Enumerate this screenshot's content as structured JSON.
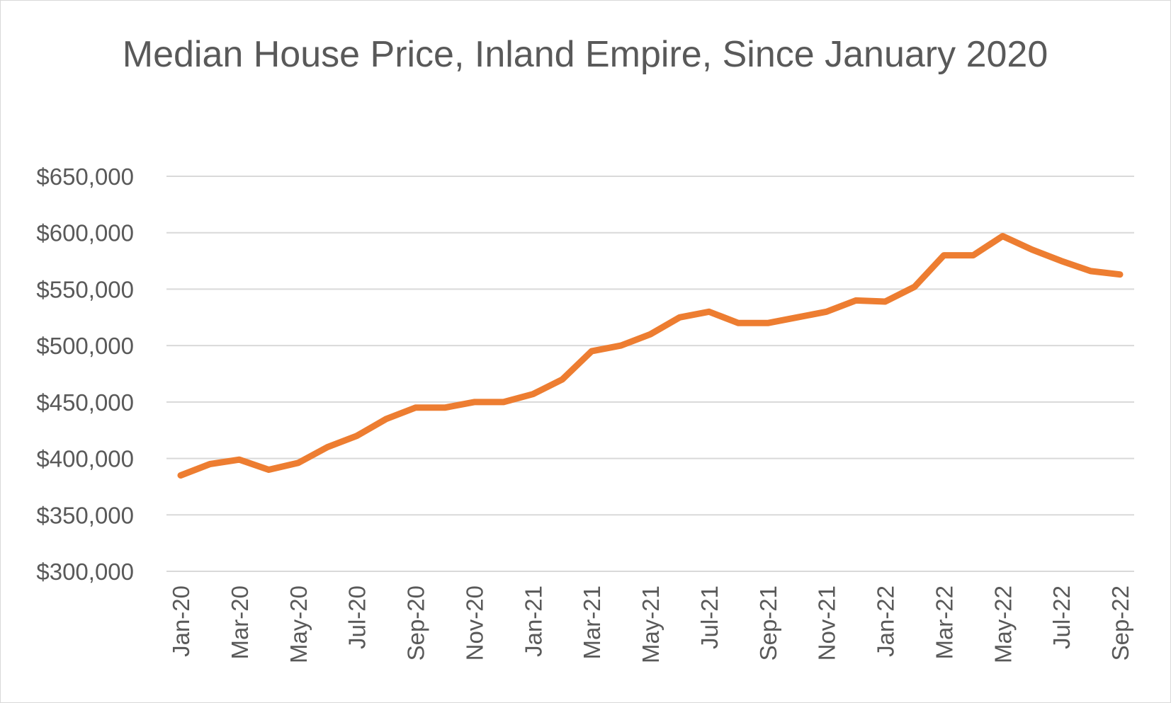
{
  "chart_data": {
    "type": "line",
    "title": "Median House Price, Inland Empire, Since January 2020",
    "xlabel": "",
    "ylabel": "",
    "x": [
      "Jan-20",
      "Feb-20",
      "Mar-20",
      "Apr-20",
      "May-20",
      "Jun-20",
      "Jul-20",
      "Aug-20",
      "Sep-20",
      "Oct-20",
      "Nov-20",
      "Dec-20",
      "Jan-21",
      "Feb-21",
      "Mar-21",
      "Apr-21",
      "May-21",
      "Jun-21",
      "Jul-21",
      "Aug-21",
      "Sep-21",
      "Oct-21",
      "Nov-21",
      "Dec-21",
      "Jan-22",
      "Feb-22",
      "Mar-22",
      "Apr-22",
      "May-22",
      "Jun-22",
      "Jul-22",
      "Aug-22",
      "Sep-22"
    ],
    "x_tick_labels": [
      "Jan-20",
      "Mar-20",
      "May-20",
      "Jul-20",
      "Sep-20",
      "Nov-20",
      "Jan-21",
      "Mar-21",
      "May-21",
      "Jul-21",
      "Sep-21",
      "Nov-21",
      "Jan-22",
      "Mar-22",
      "May-22",
      "Jul-22",
      "Sep-22"
    ],
    "series": [
      {
        "color": "#ED7D31",
        "values": [
          385000,
          395000,
          399000,
          390000,
          396000,
          410000,
          420000,
          435000,
          445000,
          445000,
          450000,
          450000,
          457000,
          470000,
          495000,
          500000,
          510000,
          525000,
          530000,
          520000,
          520000,
          525000,
          530000,
          540000,
          539000,
          552000,
          580000,
          580000,
          597000,
          585000,
          575000,
          566000,
          563000
        ]
      }
    ],
    "ylim": [
      300000,
      650000
    ],
    "y_ticks": [
      300000,
      350000,
      400000,
      450000,
      500000,
      550000,
      600000,
      650000
    ],
    "y_tick_labels": [
      "$300,000",
      "$350,000",
      "$400,000",
      "$450,000",
      "$500,000",
      "$550,000",
      "$600,000",
      "$650,000"
    ],
    "grid": true,
    "legend": "none"
  }
}
